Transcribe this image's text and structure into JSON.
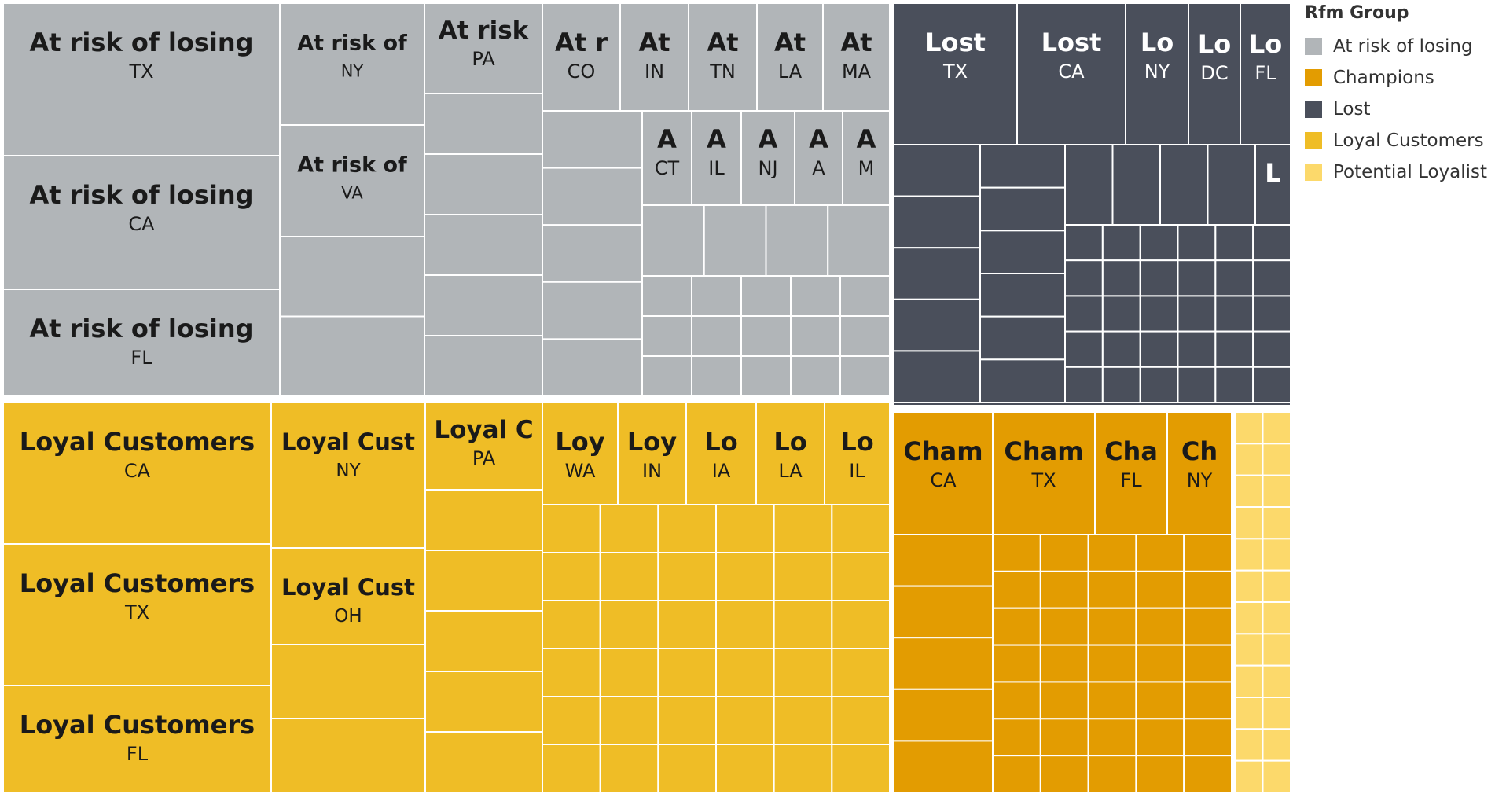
{
  "chart_data": {
    "type": "treemap",
    "legend": {
      "title": "Rfm Group",
      "placement": "top-right",
      "items": [
        {
          "label": "At risk of losing",
          "color": "#b1b5b8"
        },
        {
          "label": "Champions",
          "color": "#e39c01"
        },
        {
          "label": "Lost",
          "color": "#4a4f5b"
        },
        {
          "label": "Loyal Customers",
          "color": "#efbd26"
        },
        {
          "label": "Potential Loyalist",
          "color": "#fcd96b"
        }
      ]
    },
    "groups": [
      {
        "name": "At risk of losing",
        "color": "#b1b5b8",
        "text_color": "#1a1a1a",
        "labeled_tiles": [
          {
            "group_text": "At risk of losing",
            "state": "TX"
          },
          {
            "group_text": "At risk of losing",
            "state": "CA"
          },
          {
            "group_text": "At risk of losing",
            "state": "FL"
          },
          {
            "group_text": "At risk of",
            "state": "NY"
          },
          {
            "group_text": "At risk of",
            "state": "VA"
          },
          {
            "group_text": "At risk",
            "state": "PA"
          },
          {
            "group_text": "At r",
            "state": "CO"
          },
          {
            "group_text": "At",
            "state": "IN"
          },
          {
            "group_text": "At",
            "state": "TN"
          },
          {
            "group_text": "At",
            "state": "LA"
          },
          {
            "group_text": "At",
            "state": "MA"
          },
          {
            "group_text": "A",
            "state": "CT"
          },
          {
            "group_text": "A",
            "state": "IL"
          },
          {
            "group_text": "A",
            "state": "NJ"
          },
          {
            "group_text": "A",
            "state": "A"
          },
          {
            "group_text": "A",
            "state": "M"
          }
        ]
      },
      {
        "name": "Lost",
        "color": "#4a4f5b",
        "text_color": "#ffffff",
        "labeled_tiles": [
          {
            "group_text": "Lost",
            "state": "TX"
          },
          {
            "group_text": "Lost",
            "state": "CA"
          },
          {
            "group_text": "Lo",
            "state": "NY"
          },
          {
            "group_text": "Lo",
            "state": "DC"
          },
          {
            "group_text": "Lo",
            "state": "FL"
          },
          {
            "group_text": "L",
            "state": ""
          }
        ]
      },
      {
        "name": "Loyal Customers",
        "color": "#efbd26",
        "text_color": "#1a1a1a",
        "labeled_tiles": [
          {
            "group_text": "Loyal Customers",
            "state": "CA"
          },
          {
            "group_text": "Loyal Customers",
            "state": "TX"
          },
          {
            "group_text": "Loyal Customers",
            "state": "FL"
          },
          {
            "group_text": "Loyal Cust",
            "state": "NY"
          },
          {
            "group_text": "Loyal Cust",
            "state": "OH"
          },
          {
            "group_text": "Loyal C",
            "state": "PA"
          },
          {
            "group_text": "Loy",
            "state": "WA"
          },
          {
            "group_text": "Loy",
            "state": "IN"
          },
          {
            "group_text": "Lo",
            "state": "IA"
          },
          {
            "group_text": "Lo",
            "state": "LA"
          },
          {
            "group_text": "Lo",
            "state": "IL"
          }
        ]
      },
      {
        "name": "Champions",
        "color": "#e39c01",
        "text_color": "#1a1a1a",
        "labeled_tiles": [
          {
            "group_text": "Cham",
            "state": "CA"
          },
          {
            "group_text": "Cham",
            "state": "TX"
          },
          {
            "group_text": "Cha",
            "state": "FL"
          },
          {
            "group_text": "Ch",
            "state": "NY"
          }
        ]
      },
      {
        "name": "Potential Loyalist",
        "color": "#fcd96b",
        "text_color": "#1a1a1a",
        "labeled_tiles": []
      }
    ]
  }
}
